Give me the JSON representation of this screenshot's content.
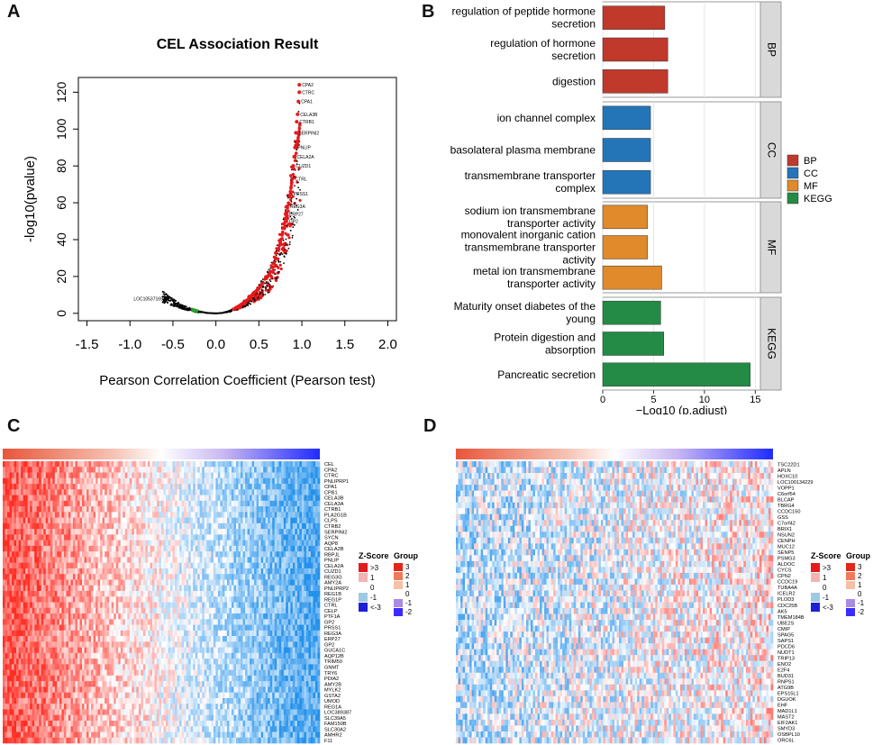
{
  "panels": {
    "a": "A",
    "b": "B",
    "c": "C",
    "d": "D"
  },
  "chart_data": [
    {
      "type": "scatter",
      "title": "CEL Association Result",
      "xlabel": "Pearson Correlation Coefficient (Pearson test)",
      "ylabel": "-log10(pvalue)",
      "xlim": [
        -1.6,
        2.1
      ],
      "ylim": [
        -4,
        128
      ],
      "xticks": [
        "-1.5",
        "-1.0",
        "-0.5",
        "0.0",
        "0.5",
        "1.0",
        "1.5",
        "2.0"
      ],
      "yticks": [
        "0",
        "20",
        "40",
        "60",
        "80",
        "100",
        "120"
      ],
      "xtick_values": [
        -1.5,
        -1.0,
        -0.5,
        0.0,
        0.5,
        1.0,
        1.5,
        2.0
      ],
      "ytick_values": [
        0,
        20,
        40,
        60,
        80,
        100,
        120
      ],
      "highlight_color": "#e41a1c",
      "neg_color": "#2ca02c",
      "labeled_points": [
        {
          "label": "CPA2",
          "x": 0.97,
          "y": 124
        },
        {
          "label": "CTRC",
          "x": 0.97,
          "y": 120
        },
        {
          "label": "CPA1",
          "x": 0.96,
          "y": 115
        },
        {
          "label": "CELA3B",
          "x": 0.95,
          "y": 108
        },
        {
          "label": "CTRB1",
          "x": 0.94,
          "y": 104
        },
        {
          "label": "SERPINI2",
          "x": 0.93,
          "y": 98
        },
        {
          "label": "PNLIP",
          "x": 0.92,
          "y": 90
        },
        {
          "label": "CELA2A",
          "x": 0.91,
          "y": 85
        },
        {
          "label": "CUZD1",
          "x": 0.9,
          "y": 80
        },
        {
          "label": "CTRL",
          "x": 0.89,
          "y": 73
        },
        {
          "label": "PRSS1",
          "x": 0.87,
          "y": 65
        },
        {
          "label": "REG3A",
          "x": 0.83,
          "y": 58
        },
        {
          "label": "ERP27",
          "x": 0.82,
          "y": 54
        },
        {
          "label": "GP2",
          "x": 0.82,
          "y": 50
        },
        {
          "label": "LOC105371697",
          "x": -0.58,
          "y": 8
        }
      ]
    },
    {
      "type": "bar",
      "orientation": "horizontal",
      "xlabel": "−Log10 (p.adjust)",
      "xlim": [
        0,
        15
      ],
      "xticks": [
        "0",
        "5",
        "10",
        "15"
      ],
      "xtick_values": [
        0,
        5,
        10,
        15
      ],
      "groups": [
        {
          "name": "BP",
          "color": "#c0392b",
          "terms": [
            {
              "label": [
                "regulation of peptide hormone",
                "secretion"
              ],
              "value": 6.1
            },
            {
              "label": [
                "regulation of hormone",
                "secretion"
              ],
              "value": 6.4
            },
            {
              "label": [
                "digestion"
              ],
              "value": 6.4
            }
          ]
        },
        {
          "name": "CC",
          "color": "#2475b8",
          "terms": [
            {
              "label": [
                "ion channel complex"
              ],
              "value": 4.7
            },
            {
              "label": [
                "basolateral plasma membrane"
              ],
              "value": 4.7
            },
            {
              "label": [
                "transmembrane transporter",
                "complex"
              ],
              "value": 4.7
            }
          ]
        },
        {
          "name": "MF",
          "color": "#e08a2c",
          "terms": [
            {
              "label": [
                "sodium ion transmembrane",
                "transporter activity"
              ],
              "value": 4.4
            },
            {
              "label": [
                "monovalent inorganic cation",
                "transmembrane transporter",
                "activity"
              ],
              "value": 4.4
            },
            {
              "label": [
                "metal ion transmembrane",
                "transporter activity"
              ],
              "value": 5.8
            }
          ]
        },
        {
          "name": "KEGG",
          "color": "#238b45",
          "terms": [
            {
              "label": [
                "Maturity onset diabetes of the",
                "young"
              ],
              "value": 5.7
            },
            {
              "label": [
                "Protein digestion and",
                "absorption"
              ],
              "value": 6.0
            },
            {
              "label": [
                "Pancreatic secretion"
              ],
              "value": 14.5
            }
          ]
        }
      ],
      "legend": [
        "BP",
        "CC",
        "MF",
        "KEGG"
      ]
    },
    {
      "type": "heatmap",
      "panel": "C",
      "trend": "positive",
      "genes": [
        "CEL",
        "CPA2",
        "CTRC",
        "PNLIPRP1",
        "CPA1",
        "CPB1",
        "CELA3B",
        "CELA3A",
        "CTRB1",
        "PLA2G1B",
        "CLPS",
        "CTRB2",
        "SERPINI2",
        "SYCN",
        "AQP8",
        "CELA2B",
        "RBPJL",
        "PNLIP",
        "CELA2A",
        "CUZD1",
        "REG3G",
        "AMY2A",
        "PNLIPRP2",
        "REG1B",
        "REG1P",
        "CTRL",
        "CELP",
        "PTF1A",
        "GP2",
        "PRSS1",
        "REG3A",
        "ERP27",
        "GP2",
        "GUCA1C",
        "AQP12B",
        "TRIM50",
        "GNMT",
        "TRY6",
        "PDIA2",
        "AMY2B",
        "MYLK2",
        "GSTA2",
        "UMOD",
        "REG1A",
        "LOC389387",
        "SLC39A5",
        "FAM150B",
        "SLC30A2",
        "AMHR2",
        "F11"
      ]
    },
    {
      "type": "heatmap",
      "panel": "D",
      "trend": "negative",
      "genes": [
        "TSC22D1",
        "APLN",
        "HOXC10",
        "LOC100134229",
        "VOPP1",
        "C6orf54",
        "BLCAP",
        "TBRG4",
        "CCDC150",
        "GSS",
        "C7orf42",
        "BRIX1",
        "NSUN2",
        "CENPH",
        "MUC12",
        "SENP5",
        "PSMG3",
        "ALDOC",
        "CYCS",
        "CPN2",
        "CCDC19",
        "TUBA4A",
        "ICELR2",
        "PLOD3",
        "CDC25B",
        "AK5",
        "TMEM184B",
        "UBE2S",
        "CMIP",
        "SPAG5",
        "SAPS1",
        "PDCD6",
        "NUDT1",
        "TRIP13",
        "ENO2",
        "E2F4",
        "BUD31",
        "RNPS1",
        "ATG9B",
        "EPS15L1",
        "DGUOK",
        "EHF",
        "MAD1L1",
        "MAST2",
        "EIF2AK1",
        "SMYD3",
        "OSBPL10",
        "ORC6L"
      ]
    },
    {
      "type": "legend",
      "zscore_title": "Z-Score",
      "group_title": "Group",
      "zscore_labels": [
        ">3",
        "1",
        "0",
        "-1",
        "<-3"
      ],
      "zscore_colors": [
        "#e41a1c",
        "#f4b3b3",
        "#ffffff",
        "#9ec9e2",
        "#1f1fd6"
      ],
      "group_labels": [
        "3",
        "2",
        "1",
        "0",
        "-1",
        "-2"
      ],
      "group_colors": [
        "#e3261b",
        "#ef7a5a",
        "#f7bfa6",
        "#ffffff",
        "#a98be6",
        "#3a2cff"
      ]
    }
  ]
}
